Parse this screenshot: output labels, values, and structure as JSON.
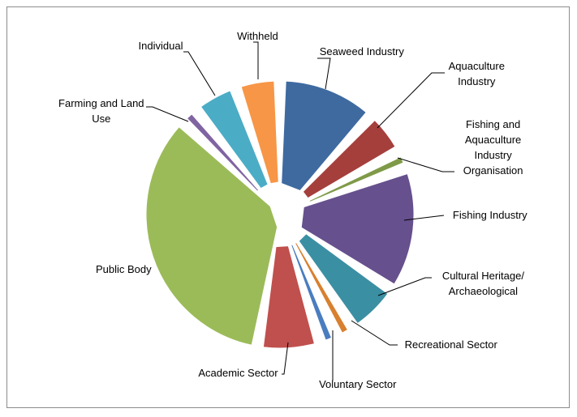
{
  "chart_data": {
    "type": "pie",
    "exploded": true,
    "legend": "none",
    "categories": [
      "Seaweed Industry",
      "Aquaculture Industry",
      "Fishing and Aquaculture Industry Organisation",
      "Fishing Industry",
      "Cultural Heritage/ Archaeological",
      "Recreational Sector",
      "Voluntary Sector",
      "Academic Sector",
      "Public Body",
      "Farming and Land Use",
      "Individual",
      "Withheld"
    ],
    "values": [
      11,
      5,
      2,
      14,
      6,
      2,
      2,
      7,
      32,
      2,
      5,
      5
    ],
    "colors": [
      "#3e6aa0",
      "#a53f3c",
      "#7f9a48",
      "#66508d",
      "#3b8fa3",
      "#d8802f",
      "#4a7dbf",
      "#c0504d",
      "#9bbb59",
      "#8064a2",
      "#4bacc6",
      "#f79646"
    ],
    "labels": [
      [
        "Seaweed Industry"
      ],
      [
        "Aquaculture",
        "Industry"
      ],
      [
        "Fishing and",
        "Aquaculture",
        "Industry",
        "Organisation"
      ],
      [
        "Fishing Industry"
      ],
      [
        "Cultural Heritage/",
        "Archaeological"
      ],
      [
        "Recreational Sector"
      ],
      [
        "Voluntary Sector"
      ],
      [
        "Academic Sector"
      ],
      [
        "Public Body"
      ],
      [
        "Farming and Land",
        "Use"
      ],
      [
        "Individual"
      ],
      [
        "Withheld"
      ]
    ]
  }
}
